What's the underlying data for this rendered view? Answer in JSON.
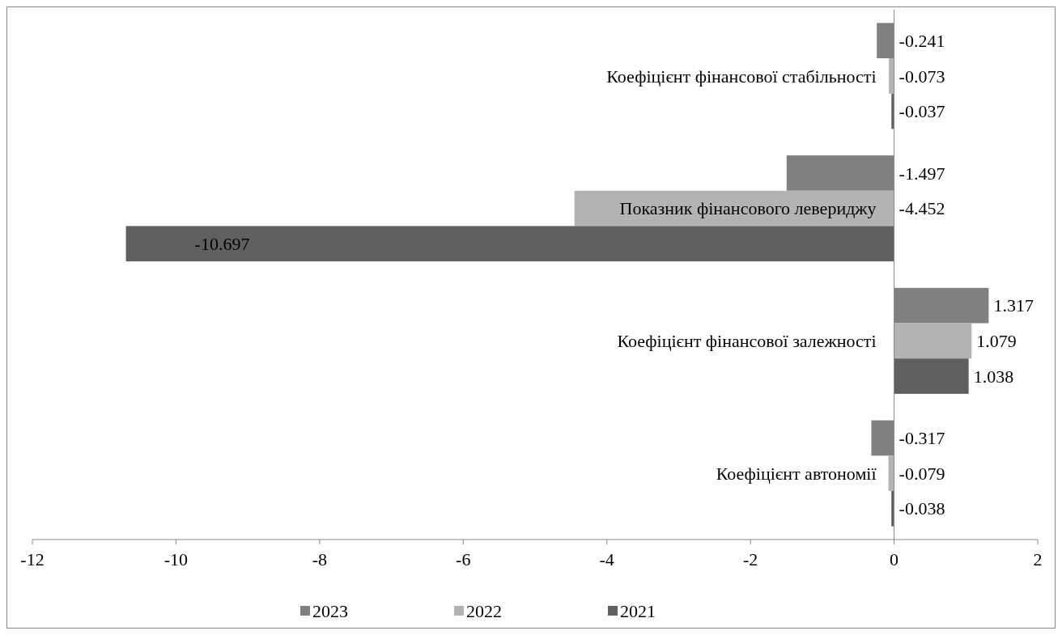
{
  "chart_data": {
    "type": "bar",
    "orientation": "horizontal",
    "categories": [
      "Коефіцієнт фінансової стабільності",
      "Показник фінансового левериджу",
      "Коефіцієнт фінансової залежності",
      "Коефіцієнт автономії"
    ],
    "series": [
      {
        "name": "2023",
        "color": "#808080",
        "values": [
          -0.241,
          -1.497,
          1.317,
          -0.317
        ]
      },
      {
        "name": "2022",
        "color": "#b3b3b3",
        "values": [
          -0.073,
          -4.452,
          1.079,
          -0.079
        ]
      },
      {
        "name": "2021",
        "color": "#606060",
        "values": [
          -0.037,
          -10.697,
          1.038,
          -0.038
        ]
      }
    ],
    "xlim": [
      -12,
      2
    ],
    "xticks": [
      -12,
      -10,
      -8,
      -6,
      -4,
      -2,
      0,
      2
    ],
    "data_labels": true,
    "grid": false,
    "legend": "bottom"
  }
}
